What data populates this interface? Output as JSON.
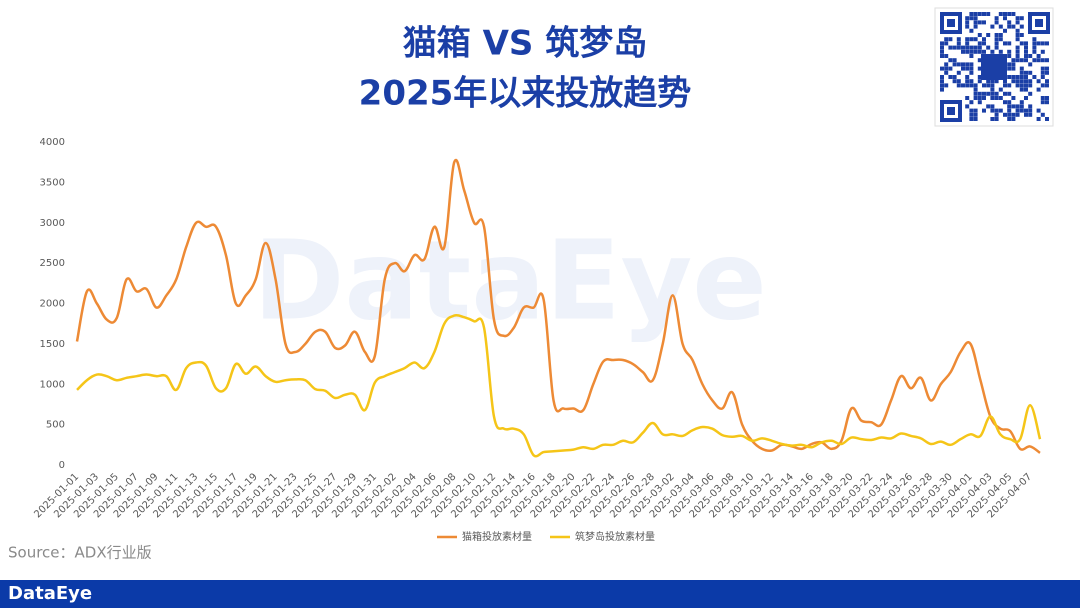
{
  "chart_data": {
    "type": "line",
    "title": "猫箱 VS 筑梦岛",
    "subtitle": "2025年以来投放趋势",
    "watermark": "DataEye",
    "categories": [
      "2025-01-01",
      null,
      "2025-01-03",
      null,
      "2025-01-05",
      null,
      "2025-01-07",
      null,
      "2025-01-09",
      null,
      "2025-01-11",
      null,
      "2025-01-13",
      null,
      "2025-01-15",
      null,
      "2025-01-17",
      null,
      "2025-01-19",
      null,
      "2025-01-21",
      null,
      "2025-01-23",
      null,
      "2025-01-25",
      null,
      "2025-01-27",
      null,
      "2025-01-29",
      null,
      "2025-01-31",
      null,
      "2025-02-02",
      null,
      "2025-02-04",
      null,
      "2025-02-06",
      null,
      "2025-02-08",
      null,
      "2025-02-10",
      null,
      "2025-02-12",
      null,
      "2025-02-14",
      null,
      "2025-02-16",
      null,
      "2025-02-18",
      null,
      "2025-02-20",
      null,
      "2025-02-22",
      null,
      "2025-02-24",
      null,
      "2025-02-26",
      null,
      "2025-02-28",
      null,
      "2025-03-02",
      null,
      "2025-03-04",
      null,
      "2025-03-06",
      null,
      "2025-03-08",
      null,
      "2025-03-10",
      null,
      "2025-03-12",
      null,
      "2025-03-14",
      null,
      "2025-03-16",
      null,
      "2025-03-18",
      null,
      "2025-03-20",
      null,
      "2025-03-22",
      null,
      "2025-03-24",
      null,
      "2025-03-26",
      null,
      "2025-03-28",
      null,
      "2025-03-30",
      null,
      "2025-04-01",
      null,
      "2025-04-03",
      null,
      "2025-04-05",
      null,
      "2025-04-07",
      null
    ],
    "series": [
      {
        "name": "猫箱投放素材量",
        "color": "#ed8a35",
        "values": [
          1530,
          2150,
          2000,
          1800,
          1820,
          2300,
          2150,
          2180,
          1950,
          2100,
          2300,
          2700,
          3000,
          2950,
          2950,
          2600,
          2000,
          2100,
          2300,
          2750,
          2300,
          1500,
          1400,
          1500,
          1650,
          1650,
          1450,
          1480,
          1650,
          1400,
          1350,
          2300,
          2500,
          2400,
          2600,
          2550,
          2950,
          2700,
          3750,
          3400,
          3000,
          2950,
          1800,
          1600,
          1700,
          1950,
          1950,
          2050,
          800,
          700,
          700,
          680,
          1000,
          1280,
          1300,
          1300,
          1250,
          1150,
          1050,
          1500,
          2100,
          1500,
          1300,
          1000,
          800,
          700,
          900,
          500,
          300,
          200,
          180,
          250,
          230,
          200,
          260,
          280,
          200,
          300,
          700,
          550,
          530,
          500,
          800,
          1100,
          950,
          1080,
          800,
          1000,
          1150,
          1400,
          1500,
          1050,
          600,
          450,
          420,
          200,
          230,
          150
        ]
      },
      {
        "name": "筑梦岛投放素材量",
        "color": "#f5c518",
        "values": [
          930,
          1050,
          1120,
          1100,
          1050,
          1080,
          1100,
          1120,
          1100,
          1100,
          930,
          1200,
          1270,
          1230,
          950,
          950,
          1250,
          1130,
          1220,
          1100,
          1030,
          1050,
          1060,
          1050,
          940,
          920,
          830,
          870,
          870,
          680,
          1020,
          1100,
          1150,
          1200,
          1270,
          1200,
          1400,
          1750,
          1850,
          1830,
          1780,
          1700,
          600,
          450,
          450,
          380,
          120,
          160,
          170,
          180,
          190,
          220,
          200,
          250,
          250,
          300,
          280,
          400,
          520,
          380,
          380,
          360,
          430,
          470,
          450,
          370,
          350,
          360,
          300,
          330,
          300,
          260,
          240,
          250,
          220,
          280,
          300,
          260,
          340,
          320,
          310,
          340,
          330,
          390,
          360,
          330,
          260,
          290,
          250,
          320,
          380,
          360,
          600,
          380,
          320,
          320,
          740,
          320
        ]
      }
    ],
    "ylim": [
      0,
      4000
    ],
    "yticks": [
      0,
      500,
      1000,
      1500,
      2000,
      2500,
      3000,
      3500,
      4000
    ],
    "grid": false,
    "legend": "bottom"
  },
  "source": "Source：ADX行业版",
  "footer": {
    "brand": "DataEye"
  }
}
